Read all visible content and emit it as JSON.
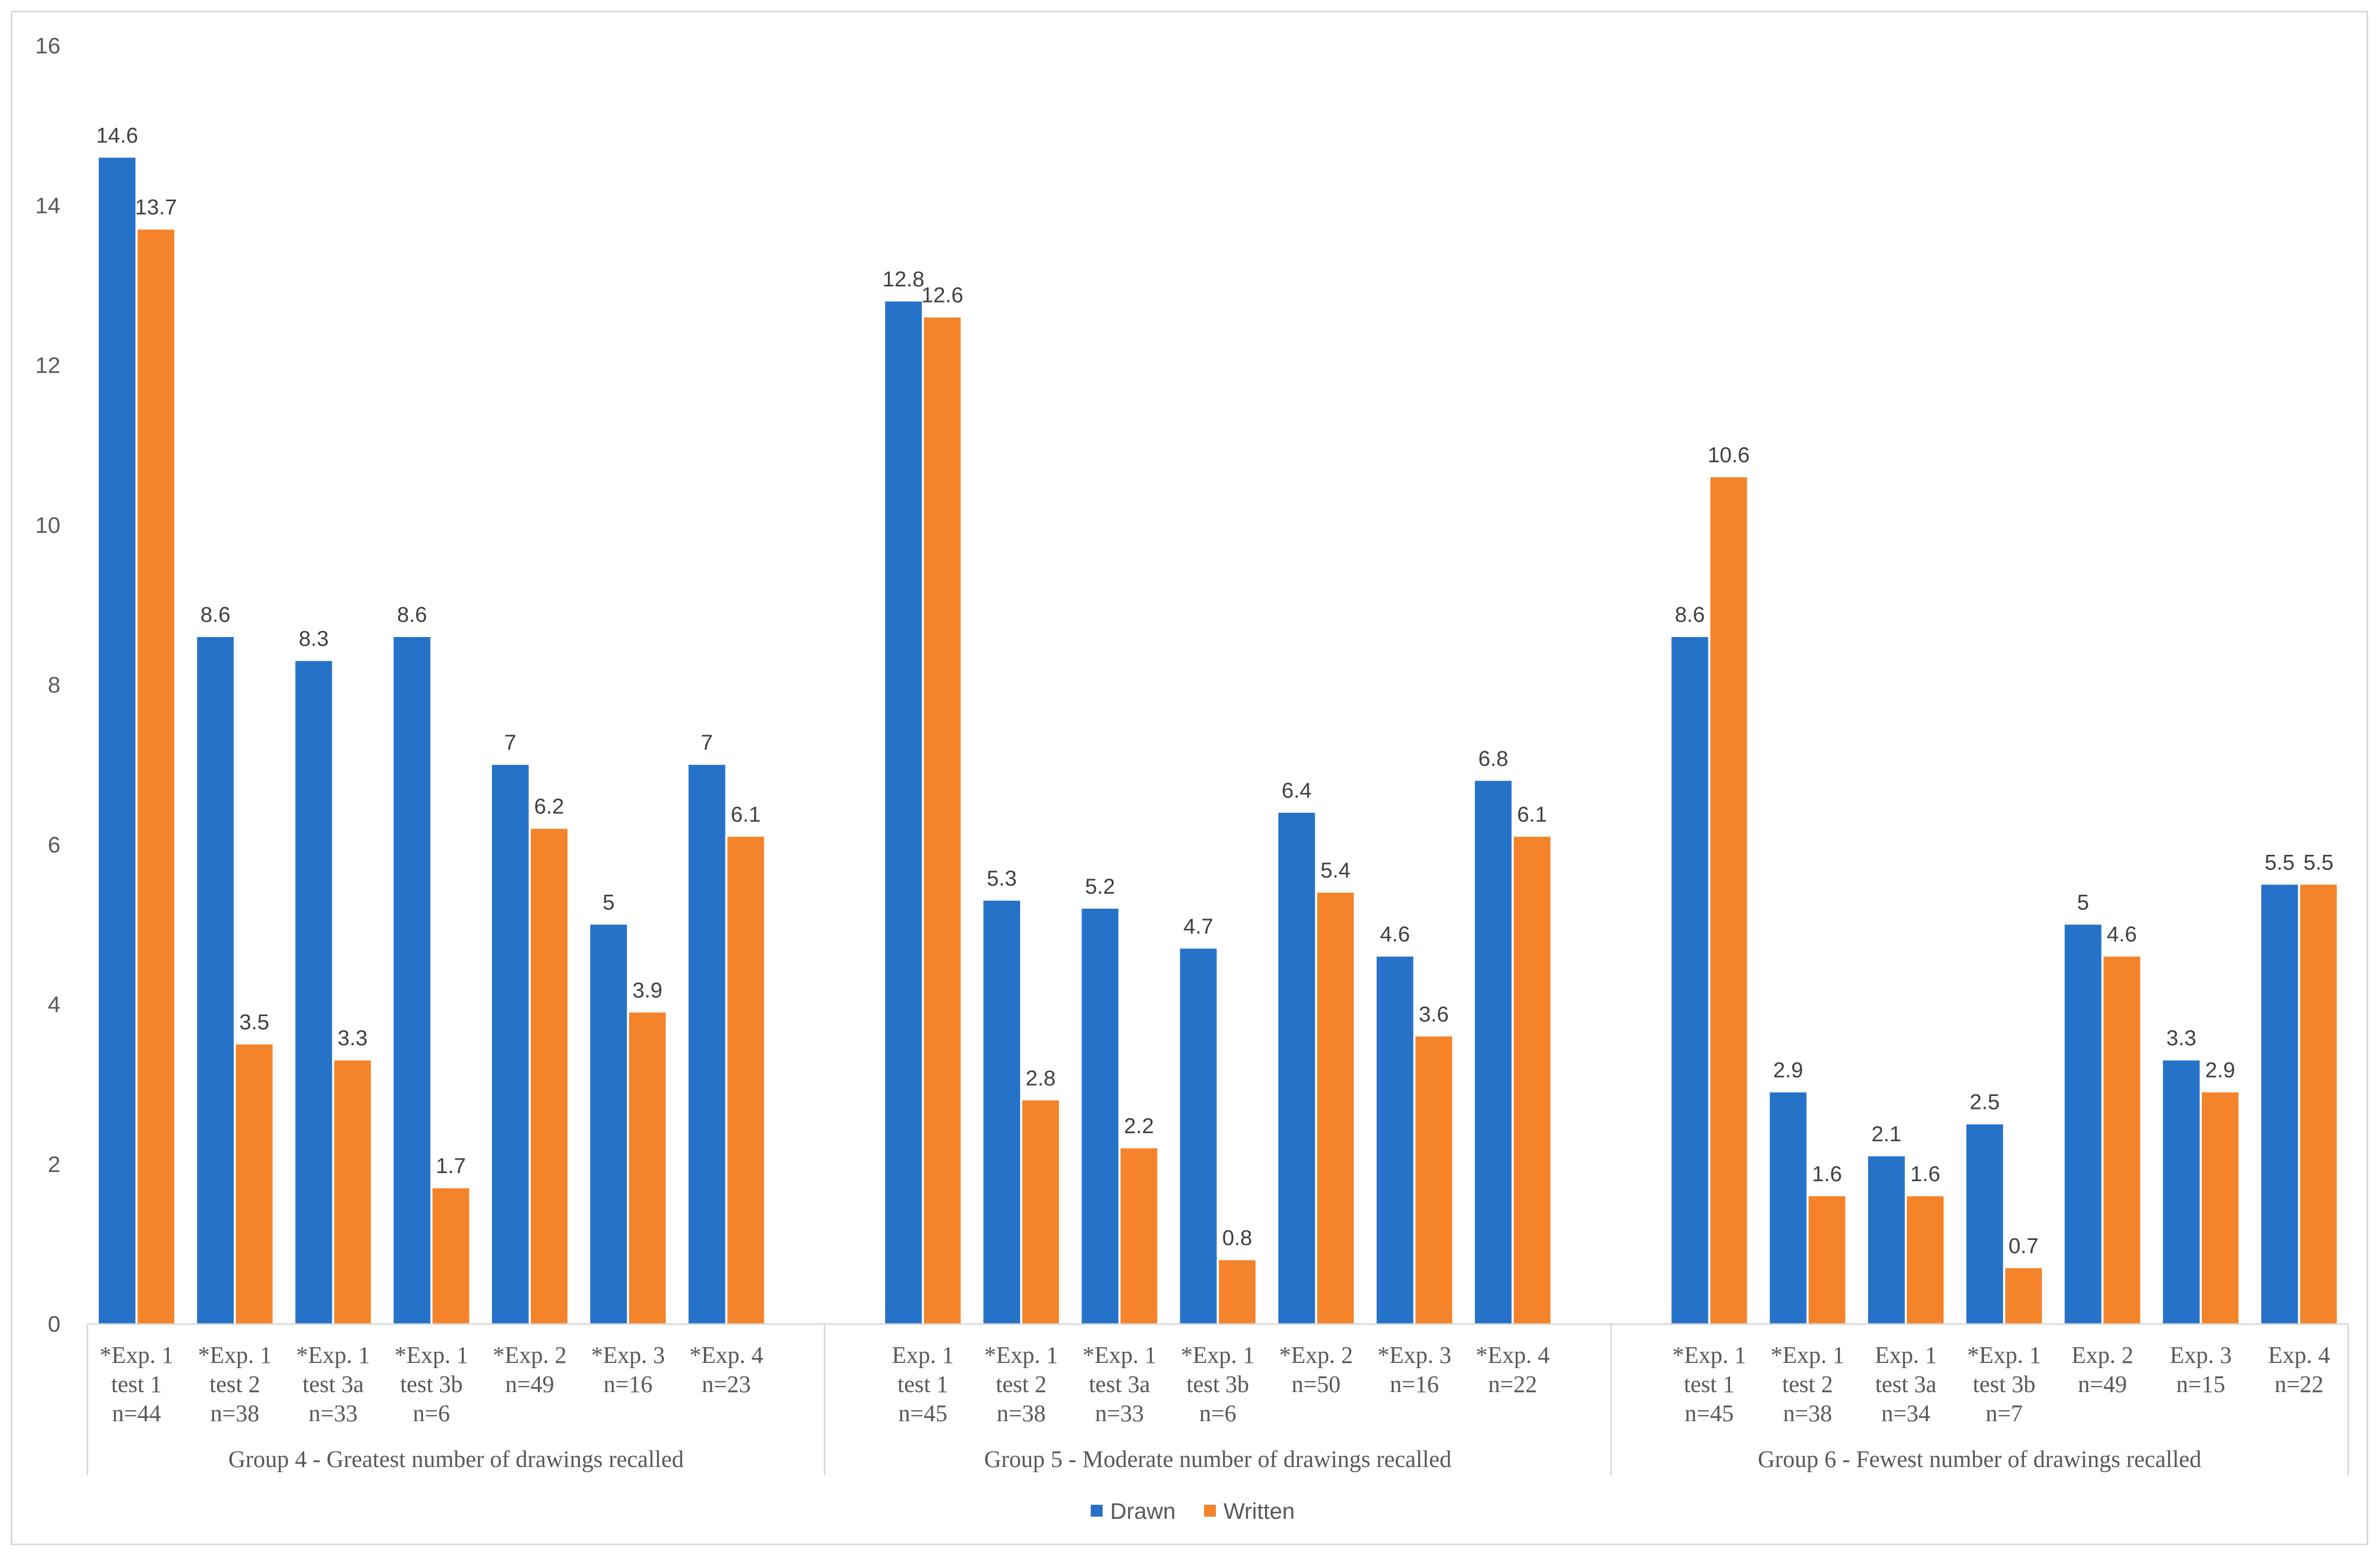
{
  "chart_data": {
    "type": "bar",
    "title": "",
    "xlabel": "",
    "ylabel": "",
    "ylim": [
      0,
      16
    ],
    "yticks": [
      0,
      2,
      4,
      6,
      8,
      10,
      12,
      14,
      16
    ],
    "grid": false,
    "legend_position": "bottom-center",
    "groups": [
      {
        "label": "Group 4 - Greatest number of drawings recalled",
        "categories": [
          [
            "*Exp. 1",
            "test 1",
            "n=44"
          ],
          [
            "*Exp. 1",
            "test 2",
            "n=38"
          ],
          [
            "*Exp. 1",
            "test 3a",
            "n=33"
          ],
          [
            "*Exp. 1",
            "test 3b",
            "n=6"
          ],
          [
            "*Exp. 2",
            "n=49"
          ],
          [
            "*Exp. 3",
            "n=16"
          ],
          [
            "*Exp. 4",
            "n=23"
          ]
        ]
      },
      {
        "label": "Group 5 - Moderate number of drawings recalled",
        "categories": [
          [
            "Exp. 1",
            "test 1",
            "n=45"
          ],
          [
            "*Exp. 1",
            "test 2",
            "n=38"
          ],
          [
            "*Exp. 1",
            "test 3a",
            "n=33"
          ],
          [
            "*Exp. 1",
            "test 3b",
            "n=6"
          ],
          [
            "*Exp. 2",
            "n=50"
          ],
          [
            "*Exp. 3",
            "n=16"
          ],
          [
            "*Exp. 4",
            "n=22"
          ]
        ]
      },
      {
        "label": "Group 6 - Fewest number of drawings recalled",
        "categories": [
          [
            "*Exp. 1",
            "test 1",
            "n=45"
          ],
          [
            "*Exp. 1",
            "test 2",
            "n=38"
          ],
          [
            "Exp. 1",
            "test 3a",
            "n=34"
          ],
          [
            "*Exp. 1",
            "test 3b",
            "n=7"
          ],
          [
            "Exp. 2",
            "n=49"
          ],
          [
            "Exp. 3",
            "n=15"
          ],
          [
            "Exp. 4",
            "n=22"
          ]
        ]
      }
    ],
    "series": [
      {
        "name": "Drawn",
        "color": "#2672c9",
        "values": [
          14.6,
          8.6,
          8.3,
          8.6,
          7,
          5,
          7,
          12.8,
          5.3,
          5.2,
          4.7,
          6.4,
          4.6,
          6.8,
          8.6,
          2.9,
          2.1,
          2.5,
          5,
          3.3,
          5.5
        ]
      },
      {
        "name": "Written",
        "color": "#f4832a",
        "values": [
          13.7,
          3.5,
          3.3,
          1.7,
          6.2,
          3.9,
          6.1,
          12.6,
          2.8,
          2.2,
          0.8,
          5.4,
          3.6,
          6.1,
          10.6,
          1.6,
          1.6,
          0.7,
          4.6,
          2.9,
          5.5
        ]
      }
    ]
  }
}
